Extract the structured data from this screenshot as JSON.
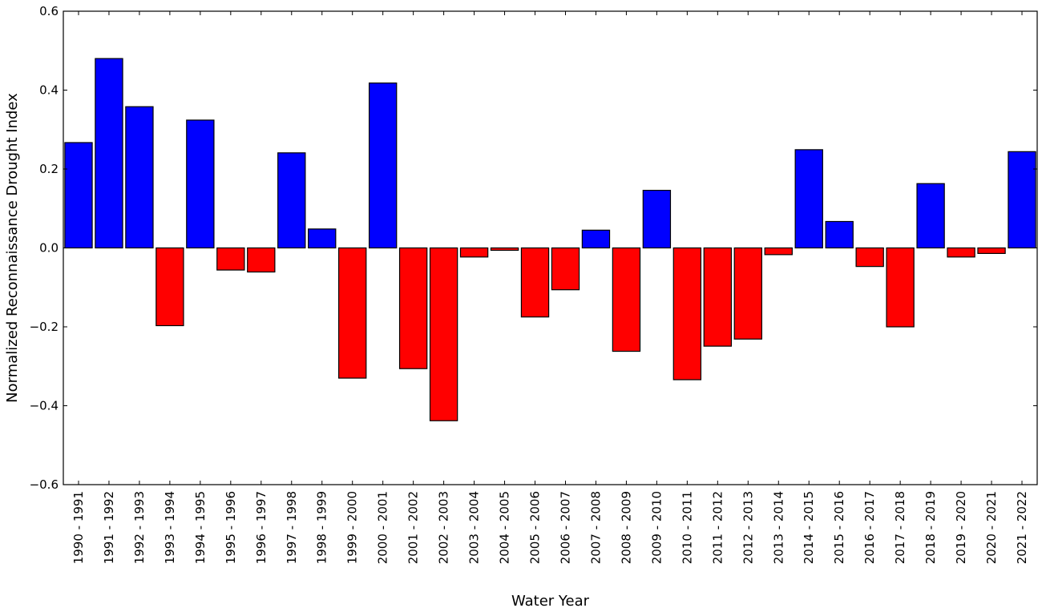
{
  "chart_data": {
    "type": "bar",
    "title": "",
    "xlabel": "Water Year",
    "ylabel": "Normalized Reconnaissance Drought Index",
    "ylim": [
      -0.6,
      0.6
    ],
    "yticks": [
      -0.6,
      -0.4,
      -0.2,
      0.0,
      0.2,
      0.4,
      0.6
    ],
    "ytick_labels": [
      "−0.6",
      "−0.4",
      "−0.2",
      "0.0",
      "0.2",
      "0.4",
      "0.6"
    ],
    "grid": false,
    "legend": "none",
    "colors": {
      "positive": "#0000ff",
      "negative": "#ff0000",
      "edge": "#000000"
    },
    "categories": [
      "1990 - 1991",
      "1991 - 1992",
      "1992 - 1993",
      "1993 - 1994",
      "1994 - 1995",
      "1995 - 1996",
      "1996 - 1997",
      "1997 - 1998",
      "1998 - 1999",
      "1999 - 2000",
      "2000 - 2001",
      "2001 - 2002",
      "2002 - 2003",
      "2003 - 2004",
      "2004 - 2005",
      "2005 - 2006",
      "2006 - 2007",
      "2007 - 2008",
      "2008 - 2009",
      "2009 - 2010",
      "2010 - 2011",
      "2011 - 2012",
      "2012 - 2013",
      "2013 - 2014",
      "2014 - 2015",
      "2015 - 2016",
      "2016 - 2017",
      "2017 - 2018",
      "2018 - 2019",
      "2019 - 2020",
      "2020 - 2021",
      "2021 - 2022"
    ],
    "values": [
      0.267,
      0.48,
      0.358,
      -0.197,
      0.324,
      -0.056,
      -0.061,
      0.241,
      0.048,
      -0.33,
      0.418,
      -0.306,
      -0.438,
      -0.023,
      -0.006,
      -0.175,
      -0.106,
      0.045,
      -0.262,
      0.146,
      -0.334,
      -0.249,
      -0.231,
      -0.017,
      0.249,
      0.067,
      -0.047,
      -0.2,
      0.163,
      -0.023,
      -0.014,
      0.244
    ]
  }
}
